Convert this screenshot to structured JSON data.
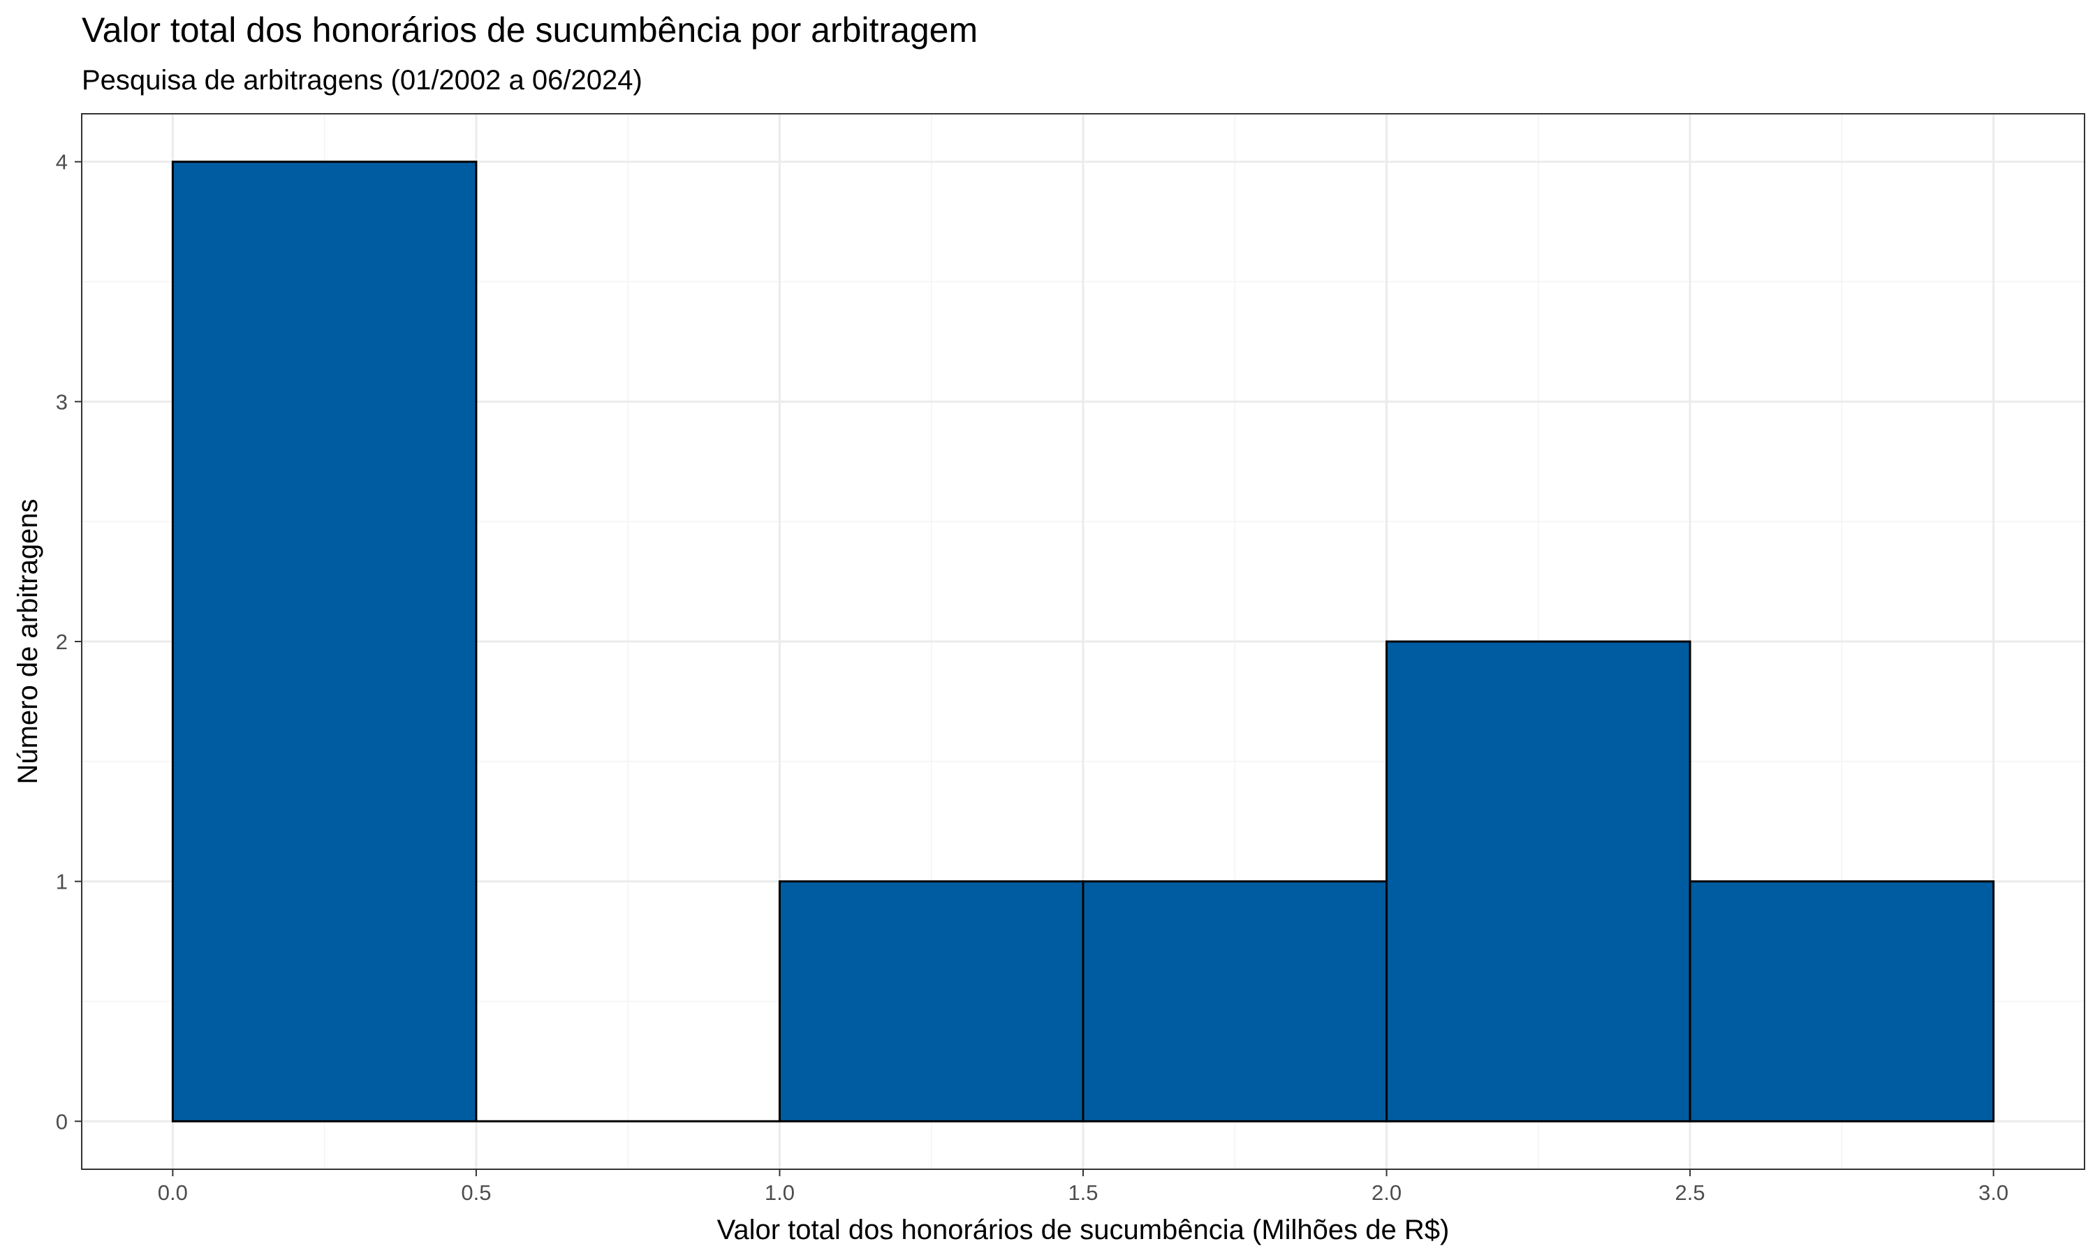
{
  "chart_data": {
    "type": "bar",
    "title": "Valor total dos honorários de sucumbência por arbitragem",
    "subtitle": "Pesquisa de arbitragens (01/2002 a 06/2024)",
    "xlabel": "Valor total dos honorários de sucumbência (Milhões de R$)",
    "ylabel": "Número de arbitragens",
    "bins": [
      {
        "x0": 0.0,
        "x1": 0.5,
        "count": 4
      },
      {
        "x0": 0.5,
        "x1": 1.0,
        "count": 0
      },
      {
        "x0": 1.0,
        "x1": 1.5,
        "count": 1
      },
      {
        "x0": 1.5,
        "x1": 2.0,
        "count": 1
      },
      {
        "x0": 2.0,
        "x1": 2.5,
        "count": 2
      },
      {
        "x0": 2.5,
        "x1": 3.0,
        "count": 1
      }
    ],
    "x_ticks": [
      "0.0",
      "0.5",
      "1.0",
      "1.5",
      "2.0",
      "2.5",
      "3.0"
    ],
    "y_ticks": [
      "0",
      "1",
      "2",
      "3",
      "4"
    ],
    "xlim": [
      -0.15,
      3.15
    ],
    "ylim": [
      -0.2,
      4.2
    ],
    "grid": true,
    "bar_color": "#005CA0",
    "bar_border_color": "#000000",
    "panel_border_color": "#333333",
    "grid_major_color": "#EBEBEB",
    "grid_minor_color": "#F3F3F3"
  }
}
